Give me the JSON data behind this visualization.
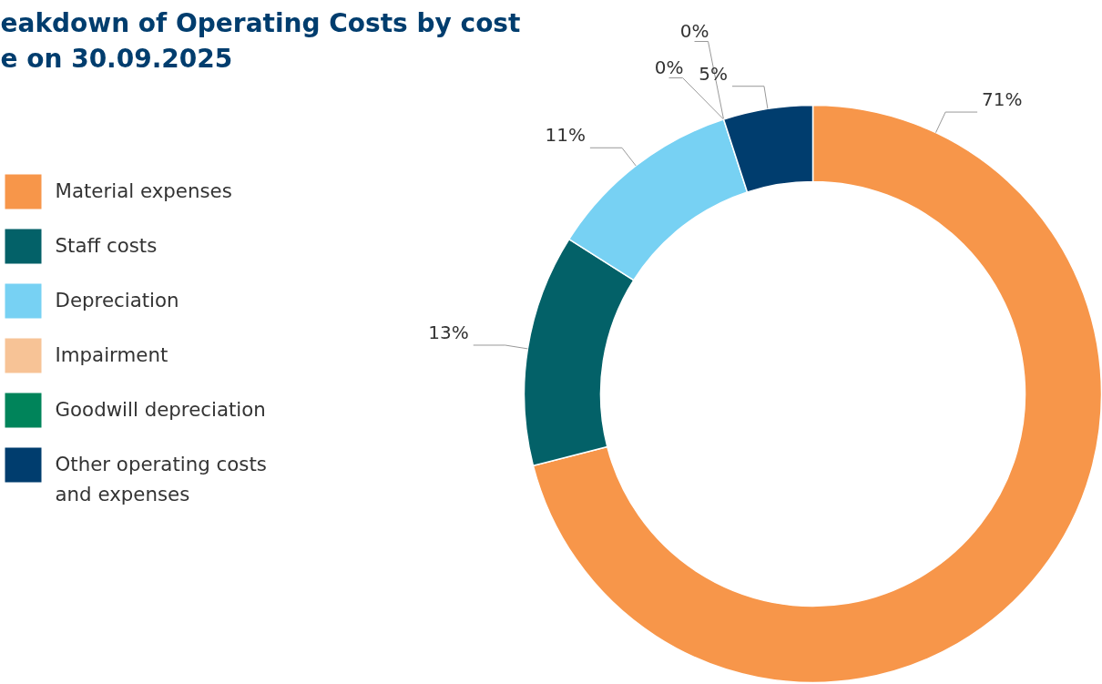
{
  "chart_data": {
    "type": "donut",
    "title": "eakdown of Operating Costs by cost e on 30.09.2025",
    "categories": [
      "Material expenses",
      "Staff costs",
      "Depreciation",
      "Impairment",
      "Goodwill depreciation",
      "Other operating costs and expenses"
    ],
    "values": [
      71,
      13,
      11,
      0,
      0,
      5
    ],
    "colors": [
      "#f7964a",
      "#036168",
      "#77d1f3",
      "#f7c396",
      "#00845a",
      "#003d6e"
    ],
    "value_labels": [
      "71%",
      "13%",
      "11%",
      "0%",
      "0%",
      "5%"
    ],
    "legend": "left"
  }
}
